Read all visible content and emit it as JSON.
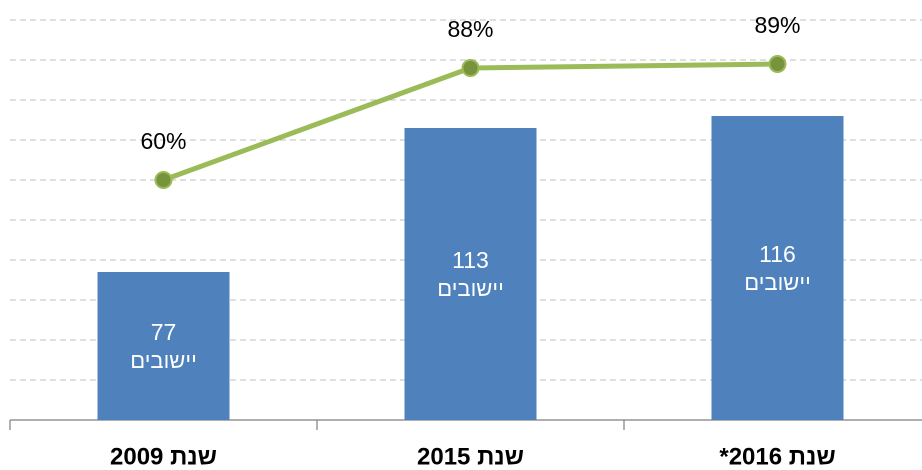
{
  "chart_data": {
    "type": "bar-line",
    "categories": [
      "שנת 2009",
      "שנת 2015",
      "שנת 2016*"
    ],
    "bar_unit": "יישובים",
    "series": [
      {
        "type": "bar",
        "color": "#4f81bd",
        "values": [
          77,
          113,
          116
        ]
      },
      {
        "type": "line",
        "axis": "y2",
        "color": "#9bbb59",
        "marker_color": "#77933c",
        "values": [
          60,
          88,
          89
        ],
        "value_labels": [
          "60%",
          "88%",
          "89%"
        ]
      }
    ],
    "ylim": [
      40,
      140
    ],
    "yticks": [
      50,
      60,
      70,
      80,
      90,
      100,
      110,
      120,
      130,
      140
    ],
    "y2lim": [
      0,
      100
    ],
    "grid": true
  }
}
